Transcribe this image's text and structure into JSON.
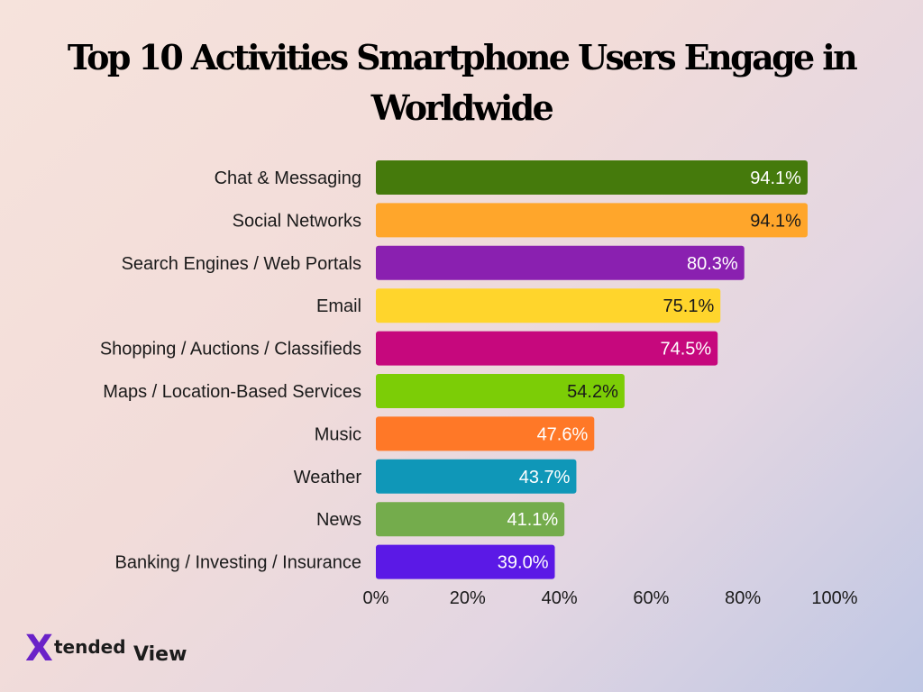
{
  "title": "Top 10 Activities Smartphone Users Engage in Worldwide",
  "logo": {
    "mark": "X",
    "word1": "tended",
    "word2": "View"
  },
  "chart_data": {
    "type": "bar",
    "orientation": "horizontal",
    "title": "Top 10 Activities Smartphone Users Engage in Worldwide",
    "categories": [
      "Chat & Messaging",
      "Social Networks",
      "Search Engines / Web Portals",
      "Email",
      "Shopping / Auctions / Classifieds",
      "Maps / Location-Based Services",
      "Music",
      "Weather",
      "News",
      "Banking / Investing / Insurance"
    ],
    "values": [
      94.1,
      94.1,
      80.3,
      75.1,
      74.5,
      54.2,
      47.6,
      43.7,
      41.1,
      39.0
    ],
    "value_labels": [
      "94.1%",
      "94.1%",
      "80.3%",
      "75.1%",
      "74.5%",
      "54.2%",
      "47.6%",
      "43.7%",
      "41.1%",
      "39.0%"
    ],
    "colors": [
      "#457a0c",
      "#ffa62b",
      "#8a20b0",
      "#ffd52c",
      "#c6087d",
      "#7ccd06",
      "#ff7827",
      "#0f97b8",
      "#74ac4c",
      "#5b19e6"
    ],
    "label_colors": [
      "#ffffff",
      "#1a1a1a",
      "#ffffff",
      "#1a1a1a",
      "#ffffff",
      "#1a1a1a",
      "#ffffff",
      "#ffffff",
      "#ffffff",
      "#ffffff"
    ],
    "xlim": [
      0,
      100
    ],
    "xticks": [
      0,
      20,
      40,
      60,
      80,
      100
    ],
    "xtick_labels": [
      "0%",
      "20%",
      "40%",
      "60%",
      "80%",
      "100%"
    ],
    "xlabel": "",
    "ylabel": "",
    "grid": false,
    "legend": "none"
  }
}
